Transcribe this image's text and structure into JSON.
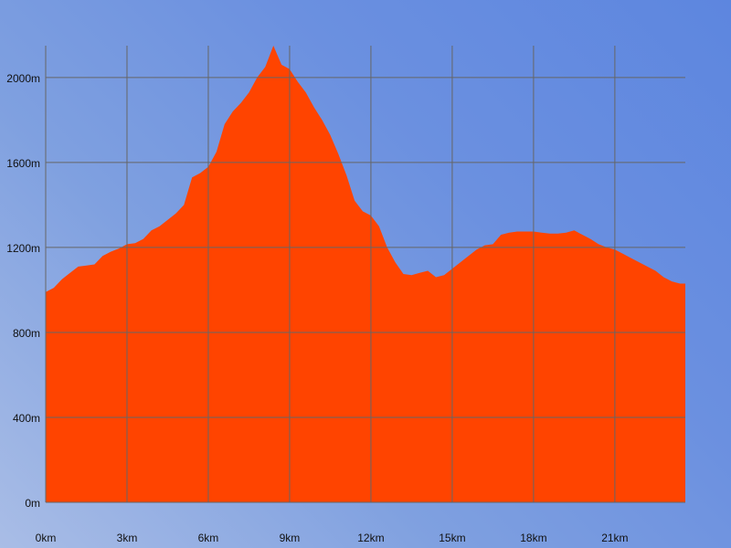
{
  "chart_data": {
    "type": "area",
    "title": "",
    "xlabel": "",
    "ylabel": "",
    "xlim": [
      0,
      23.6
    ],
    "ylim": [
      0,
      2150
    ],
    "grid": true,
    "colors": {
      "fill": "#ff4400",
      "grid": "#666666"
    },
    "x_ticks": [
      {
        "value": 0,
        "label": "0km"
      },
      {
        "value": 3,
        "label": "3km"
      },
      {
        "value": 6,
        "label": "6km"
      },
      {
        "value": 9,
        "label": "9km"
      },
      {
        "value": 12,
        "label": "12km"
      },
      {
        "value": 15,
        "label": "15km"
      },
      {
        "value": 18,
        "label": "18km"
      },
      {
        "value": 21,
        "label": "21km"
      }
    ],
    "y_ticks": [
      {
        "value": 0,
        "label": "0m"
      },
      {
        "value": 400,
        "label": "400m"
      },
      {
        "value": 800,
        "label": "800m"
      },
      {
        "value": 1200,
        "label": "1200m"
      },
      {
        "value": 1600,
        "label": "1600m"
      },
      {
        "value": 2000,
        "label": "2000m"
      }
    ],
    "series": [
      {
        "x": [
          0,
          0.3,
          0.6,
          0.9,
          1.2,
          1.5,
          1.8,
          2.1,
          2.4,
          2.7,
          3.0,
          3.3,
          3.6,
          3.9,
          4.2,
          4.5,
          4.8,
          5.1,
          5.4,
          5.7,
          6.0,
          6.3,
          6.6,
          6.9,
          7.2,
          7.5,
          7.8,
          8.1,
          8.4,
          8.7,
          9.0,
          9.3,
          9.6,
          9.9,
          10.2,
          10.5,
          10.8,
          11.1,
          11.4,
          11.7,
          12.0,
          12.3,
          12.6,
          12.9,
          13.2,
          13.5,
          13.8,
          14.1,
          14.4,
          14.7,
          15.0,
          15.3,
          15.6,
          15.9,
          16.2,
          16.5,
          16.8,
          17.1,
          17.4,
          17.7,
          18.0,
          18.3,
          18.6,
          18.9,
          19.2,
          19.5,
          19.8,
          20.1,
          20.4,
          20.7,
          21.0,
          21.3,
          21.6,
          21.9,
          22.2,
          22.5,
          22.8,
          23.1,
          23.4,
          23.6
        ],
        "values": [
          990,
          1010,
          1050,
          1080,
          1110,
          1115,
          1120,
          1160,
          1180,
          1195,
          1215,
          1220,
          1240,
          1280,
          1300,
          1330,
          1360,
          1400,
          1530,
          1550,
          1580,
          1650,
          1780,
          1840,
          1880,
          1930,
          2000,
          2050,
          2150,
          2060,
          2040,
          1980,
          1930,
          1860,
          1800,
          1730,
          1640,
          1540,
          1420,
          1370,
          1350,
          1300,
          1200,
          1130,
          1075,
          1070,
          1080,
          1090,
          1060,
          1070,
          1100,
          1130,
          1160,
          1190,
          1210,
          1215,
          1260,
          1270,
          1275,
          1275,
          1275,
          1270,
          1265,
          1265,
          1270,
          1280,
          1260,
          1240,
          1215,
          1200,
          1190,
          1170,
          1150,
          1130,
          1110,
          1090,
          1060,
          1040,
          1030,
          1030
        ]
      }
    ]
  }
}
